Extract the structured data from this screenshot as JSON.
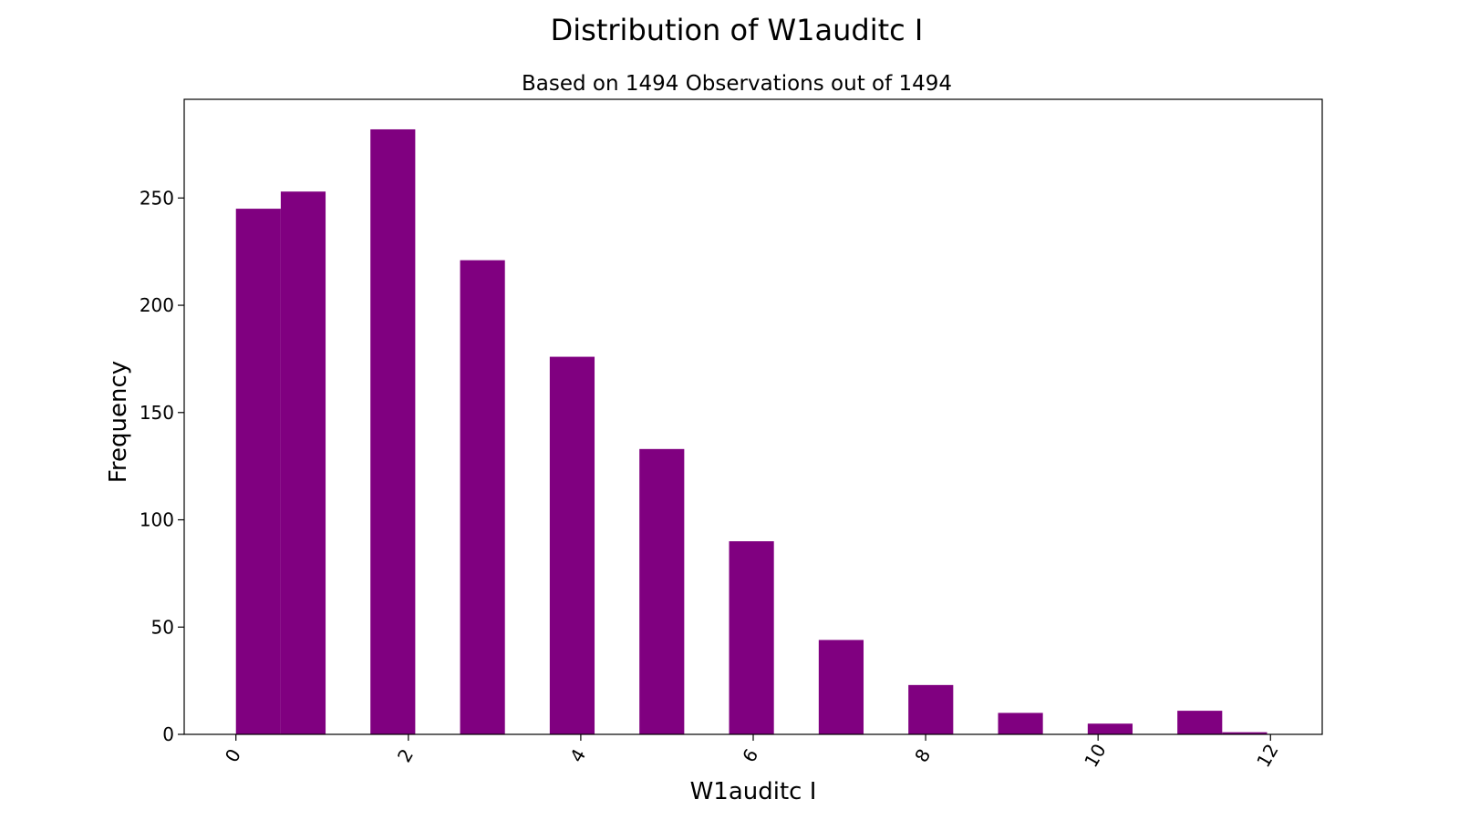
{
  "chart_data": {
    "type": "bar",
    "title": "Distribution of W1auditc I",
    "subtitle": "Based on 1494 Observations out of 1494",
    "xlabel": "W1auditc I",
    "ylabel": "Frequency",
    "bar_color": "#800080",
    "bin_width": 0.52,
    "bins": [
      {
        "x_start": 0.0,
        "value": 245
      },
      {
        "x_start": 0.52,
        "value": 253
      },
      {
        "x_start": 1.56,
        "value": 282
      },
      {
        "x_start": 2.6,
        "value": 221
      },
      {
        "x_start": 3.64,
        "value": 176
      },
      {
        "x_start": 4.68,
        "value": 133
      },
      {
        "x_start": 5.72,
        "value": 90
      },
      {
        "x_start": 6.76,
        "value": 44
      },
      {
        "x_start": 7.8,
        "value": 23
      },
      {
        "x_start": 8.84,
        "value": 10
      },
      {
        "x_start": 9.88,
        "value": 5
      },
      {
        "x_start": 10.92,
        "value": 11
      },
      {
        "x_start": 11.44,
        "value": 1
      }
    ],
    "xlim": [
      -0.6,
      12.6
    ],
    "ylim": [
      0,
      296
    ],
    "x_ticks": [
      {
        "value": 0,
        "label": "0"
      },
      {
        "value": 2,
        "label": "2"
      },
      {
        "value": 4,
        "label": "4"
      },
      {
        "value": 6,
        "label": "6"
      },
      {
        "value": 8,
        "label": "8"
      },
      {
        "value": 10,
        "label": "10"
      },
      {
        "value": 12,
        "label": "12"
      }
    ],
    "y_ticks": [
      {
        "value": 0,
        "label": "0"
      },
      {
        "value": 50,
        "label": "50"
      },
      {
        "value": 100,
        "label": "100"
      },
      {
        "value": 150,
        "label": "150"
      },
      {
        "value": 200,
        "label": "200"
      },
      {
        "value": 250,
        "label": "250"
      }
    ],
    "x_tick_rotation": -60,
    "grid": false,
    "legend": "none"
  }
}
